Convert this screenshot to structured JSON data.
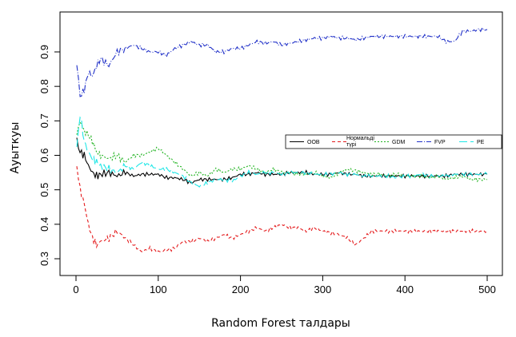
{
  "chart_data": {
    "type": "line",
    "xlabel": "Random Forest талдары",
    "ylabel": "Ауыткуы",
    "xlim": [
      0,
      500
    ],
    "ylim": [
      0.3,
      0.95
    ],
    "x_ticks": [
      0,
      100,
      200,
      300,
      400,
      500
    ],
    "y_ticks": [
      0.3,
      0.4,
      0.5,
      0.6,
      0.7,
      0.8,
      0.9
    ],
    "grid": false,
    "legend_position": "right",
    "series": [
      {
        "name": "OOB",
        "color": "#000000",
        "dash": "solid",
        "x": [
          1,
          5,
          10,
          15,
          20,
          25,
          30,
          40,
          50,
          60,
          70,
          80,
          90,
          100,
          110,
          120,
          130,
          140,
          150,
          160,
          170,
          180,
          190,
          200,
          210,
          220,
          230,
          240,
          250,
          260,
          270,
          280,
          290,
          300,
          310,
          320,
          330,
          340,
          350,
          360,
          370,
          380,
          390,
          400,
          410,
          420,
          430,
          440,
          450,
          460,
          470,
          480,
          490,
          500
        ],
        "y": [
          0.64,
          0.61,
          0.6,
          0.57,
          0.55,
          0.54,
          0.545,
          0.55,
          0.54,
          0.55,
          0.54,
          0.545,
          0.545,
          0.545,
          0.535,
          0.535,
          0.53,
          0.52,
          0.53,
          0.53,
          0.53,
          0.53,
          0.535,
          0.545,
          0.545,
          0.55,
          0.545,
          0.545,
          0.545,
          0.55,
          0.55,
          0.55,
          0.545,
          0.545,
          0.545,
          0.55,
          0.545,
          0.545,
          0.54,
          0.54,
          0.54,
          0.54,
          0.54,
          0.54,
          0.54,
          0.54,
          0.54,
          0.54,
          0.54,
          0.545,
          0.545,
          0.545,
          0.545,
          0.545
        ]
      },
      {
        "name": "Нормальді түрі",
        "color": "#e41a1c",
        "dash": "4,3",
        "x": [
          1,
          5,
          10,
          15,
          20,
          25,
          30,
          40,
          50,
          60,
          70,
          80,
          90,
          100,
          110,
          120,
          130,
          140,
          150,
          160,
          170,
          180,
          190,
          200,
          210,
          220,
          230,
          240,
          250,
          260,
          270,
          280,
          290,
          300,
          310,
          320,
          330,
          340,
          350,
          360,
          370,
          380,
          390,
          400,
          410,
          420,
          430,
          440,
          450,
          460,
          470,
          480,
          490,
          500
        ],
        "y": [
          0.57,
          0.5,
          0.46,
          0.4,
          0.36,
          0.34,
          0.35,
          0.36,
          0.38,
          0.36,
          0.34,
          0.32,
          0.33,
          0.32,
          0.325,
          0.33,
          0.35,
          0.35,
          0.36,
          0.35,
          0.36,
          0.37,
          0.36,
          0.37,
          0.38,
          0.39,
          0.38,
          0.39,
          0.4,
          0.39,
          0.39,
          0.38,
          0.39,
          0.38,
          0.375,
          0.37,
          0.36,
          0.34,
          0.36,
          0.38,
          0.38,
          0.38,
          0.38,
          0.38,
          0.38,
          0.38,
          0.38,
          0.38,
          0.38,
          0.38,
          0.38,
          0.38,
          0.38,
          0.38
        ]
      },
      {
        "name": "GDM",
        "color": "#22b422",
        "dash": "2,2",
        "x": [
          1,
          5,
          10,
          15,
          20,
          25,
          30,
          40,
          50,
          60,
          70,
          80,
          90,
          100,
          110,
          120,
          130,
          140,
          150,
          160,
          170,
          180,
          190,
          200,
          210,
          220,
          230,
          240,
          250,
          260,
          270,
          280,
          290,
          300,
          310,
          320,
          330,
          340,
          350,
          360,
          370,
          380,
          390,
          400,
          410,
          420,
          430,
          440,
          450,
          460,
          470,
          480,
          490,
          500
        ],
        "y": [
          0.66,
          0.7,
          0.67,
          0.66,
          0.64,
          0.61,
          0.6,
          0.59,
          0.6,
          0.58,
          0.6,
          0.6,
          0.61,
          0.62,
          0.6,
          0.58,
          0.56,
          0.54,
          0.55,
          0.54,
          0.56,
          0.55,
          0.56,
          0.56,
          0.57,
          0.56,
          0.55,
          0.56,
          0.55,
          0.55,
          0.545,
          0.545,
          0.55,
          0.54,
          0.535,
          0.55,
          0.56,
          0.555,
          0.55,
          0.545,
          0.545,
          0.54,
          0.545,
          0.54,
          0.54,
          0.54,
          0.535,
          0.54,
          0.53,
          0.535,
          0.54,
          0.53,
          0.53,
          0.53
        ]
      },
      {
        "name": "FVP",
        "color": "#2030c8",
        "dash": "7,2,1,2",
        "x": [
          1,
          5,
          10,
          15,
          20,
          25,
          30,
          40,
          50,
          60,
          70,
          80,
          90,
          100,
          110,
          120,
          130,
          140,
          150,
          160,
          170,
          180,
          190,
          200,
          210,
          220,
          230,
          240,
          250,
          260,
          270,
          280,
          290,
          300,
          310,
          320,
          330,
          340,
          350,
          360,
          370,
          380,
          390,
          400,
          410,
          420,
          430,
          440,
          450,
          460,
          470,
          480,
          490,
          500
        ],
        "y": [
          0.87,
          0.77,
          0.79,
          0.84,
          0.83,
          0.86,
          0.88,
          0.86,
          0.9,
          0.91,
          0.92,
          0.91,
          0.9,
          0.9,
          0.89,
          0.91,
          0.92,
          0.93,
          0.92,
          0.92,
          0.9,
          0.9,
          0.91,
          0.91,
          0.92,
          0.93,
          0.925,
          0.93,
          0.92,
          0.925,
          0.93,
          0.935,
          0.94,
          0.94,
          0.945,
          0.94,
          0.94,
          0.935,
          0.94,
          0.945,
          0.945,
          0.945,
          0.945,
          0.945,
          0.945,
          0.945,
          0.945,
          0.945,
          0.93,
          0.93,
          0.96,
          0.96,
          0.965,
          0.965
        ]
      },
      {
        "name": "PE",
        "color": "#1ee6e6",
        "dash": "10,4",
        "x": [
          1,
          5,
          10,
          15,
          20,
          25,
          30,
          40,
          50,
          60,
          70,
          80,
          90,
          100,
          110,
          120,
          130,
          140,
          150,
          160,
          170,
          180,
          190,
          200,
          210,
          220,
          230,
          240,
          250,
          260,
          270,
          280,
          290,
          300,
          310,
          320,
          330,
          340,
          350,
          360,
          370,
          380,
          390,
          400,
          410,
          420,
          430,
          440,
          450,
          460,
          470,
          480,
          490,
          500
        ],
        "y": [
          0.62,
          0.72,
          0.64,
          0.61,
          0.59,
          0.58,
          0.57,
          0.56,
          0.55,
          0.57,
          0.56,
          0.58,
          0.57,
          0.56,
          0.56,
          0.55,
          0.54,
          0.52,
          0.51,
          0.52,
          0.53,
          0.53,
          0.525,
          0.54,
          0.55,
          0.545,
          0.55,
          0.55,
          0.545,
          0.55,
          0.55,
          0.55,
          0.545,
          0.545,
          0.545,
          0.55,
          0.545,
          0.545,
          0.54,
          0.54,
          0.54,
          0.54,
          0.535,
          0.54,
          0.54,
          0.545,
          0.54,
          0.54,
          0.54,
          0.545,
          0.545,
          0.545,
          0.545,
          0.545
        ]
      }
    ]
  }
}
